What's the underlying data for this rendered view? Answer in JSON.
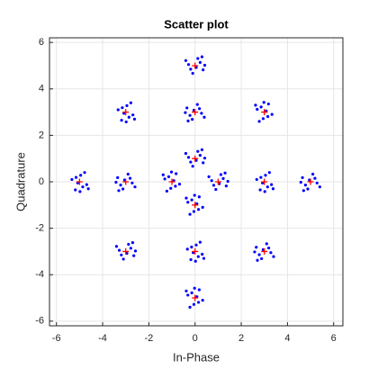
{
  "chart_data": {
    "type": "scatter",
    "title": "Scatter plot",
    "x_label": "In-Phase",
    "y_label": "Quadrature",
    "xlim": [
      -6.3,
      6.4
    ],
    "ylim": [
      -6.2,
      6.2
    ],
    "xticks": [
      -6,
      -4,
      -2,
      0,
      2,
      4,
      6
    ],
    "yticks": [
      -6,
      -4,
      -2,
      0,
      2,
      4,
      6
    ],
    "grid": true,
    "series": [
      {
        "color": "#0000ff",
        "marker": "o",
        "x": [
          0.12,
          -0.28,
          0.35,
          -0.1,
          0.22,
          -0.4,
          0.05,
          0.3,
          -0.19,
          0.42,
          -2.69,
          -2.95,
          -3.18,
          -3.33,
          -2.86,
          -2.78,
          -3.08,
          -2.62,
          -3.15,
          -2.98,
          -0.12,
          0.28,
          -0.35,
          0.1,
          -0.22,
          0.4,
          -0.05,
          -0.3,
          0.19,
          -0.42,
          2.69,
          2.95,
          3.18,
          3.33,
          2.86,
          2.78,
          3.08,
          2.62,
          3.15,
          2.98,
          0.12,
          -0.28,
          0.35,
          -0.1,
          0.22,
          -0.4,
          0.05,
          0.3,
          -0.19,
          0.42,
          -4.69,
          -4.95,
          -5.18,
          -5.33,
          -4.86,
          -4.78,
          -5.08,
          -4.62,
          -5.15,
          -4.98,
          -3.12,
          -2.72,
          -3.35,
          -2.9,
          -3.22,
          -2.6,
          -3.05,
          -3.3,
          -2.81,
          -3.42,
          -1.31,
          -1.05,
          -0.82,
          -0.67,
          -1.14,
          -1.22,
          -0.92,
          -1.38,
          -0.85,
          -1.02,
          1.12,
          0.72,
          1.35,
          0.9,
          1.22,
          0.6,
          1.05,
          1.3,
          0.81,
          1.42,
          3.31,
          3.05,
          2.82,
          2.67,
          3.14,
          3.22,
          2.92,
          3.38,
          2.85,
          3.02,
          4.88,
          5.28,
          4.65,
          5.1,
          4.78,
          5.4,
          4.95,
          4.7,
          5.19,
          4.58,
          -0.31,
          -0.05,
          0.18,
          0.33,
          -0.14,
          -0.22,
          0.08,
          -0.38,
          0.15,
          -0.02,
          -2.88,
          -3.28,
          -2.65,
          -3.1,
          -2.78,
          -3.4,
          -2.95,
          -2.7,
          -3.19,
          -2.58,
          0.31,
          0.05,
          -0.18,
          -0.33,
          0.14,
          0.22,
          -0.08,
          0.38,
          -0.15,
          0.02,
          2.88,
          3.28,
          2.65,
          3.1,
          2.78,
          3.4,
          2.95,
          2.7,
          3.19,
          2.58,
          -0.31,
          -0.05,
          0.18,
          0.33,
          -0.14,
          -0.22,
          0.08,
          -0.38,
          0.15,
          -0.02
        ],
        "values": [
          5.31,
          5.05,
          4.82,
          4.67,
          5.14,
          5.22,
          4.92,
          5.38,
          4.85,
          5.02,
          2.88,
          3.28,
          2.65,
          3.1,
          2.78,
          3.4,
          2.95,
          2.7,
          3.19,
          2.58,
          2.69,
          2.95,
          3.18,
          3.33,
          2.86,
          2.78,
          3.08,
          2.62,
          3.15,
          2.98,
          3.12,
          2.72,
          3.35,
          2.9,
          3.22,
          2.6,
          3.05,
          3.3,
          2.81,
          3.42,
          1.31,
          1.05,
          0.82,
          0.67,
          1.14,
          1.22,
          0.92,
          1.38,
          0.85,
          1.02,
          -0.12,
          0.28,
          -0.35,
          0.1,
          -0.22,
          0.4,
          -0.05,
          -0.3,
          0.19,
          -0.42,
          -0.31,
          -0.05,
          0.18,
          0.33,
          -0.14,
          -0.22,
          0.08,
          -0.38,
          0.15,
          -0.02,
          0.12,
          -0.28,
          0.35,
          -0.1,
          0.22,
          -0.4,
          0.05,
          0.3,
          -0.19,
          0.42,
          0.31,
          0.05,
          -0.18,
          -0.33,
          0.14,
          0.22,
          -0.08,
          0.38,
          -0.15,
          0.02,
          -0.12,
          0.28,
          -0.35,
          0.1,
          -0.22,
          0.4,
          -0.05,
          -0.3,
          0.19,
          -0.42,
          -0.31,
          -0.05,
          0.18,
          0.33,
          -0.14,
          -0.22,
          0.08,
          -0.38,
          0.15,
          -0.02,
          -0.88,
          -1.28,
          -0.65,
          -1.1,
          -0.78,
          -1.4,
          -0.95,
          -0.7,
          -1.19,
          -0.58,
          -2.69,
          -2.95,
          -3.18,
          -3.33,
          -2.86,
          -2.78,
          -3.08,
          -2.62,
          -3.15,
          -2.98,
          -3.12,
          -2.72,
          -3.35,
          -2.9,
          -3.22,
          -2.6,
          -3.05,
          -3.3,
          -2.81,
          -3.42,
          -3.31,
          -3.05,
          -2.82,
          -2.67,
          -3.14,
          -3.22,
          -2.92,
          -3.38,
          -2.85,
          -3.02,
          -4.88,
          -5.28,
          -4.65,
          -5.1,
          -4.78,
          -5.4,
          -4.95,
          -4.7,
          -5.19,
          -4.58
        ]
      },
      {
        "color": "#ff0000",
        "marker": "+",
        "x": [
          0,
          -3,
          0,
          3,
          0,
          -5,
          -3,
          -1,
          1,
          3,
          5,
          0,
          -3,
          0,
          3,
          0
        ],
        "values": [
          5,
          3,
          3,
          3,
          1,
          0,
          0,
          0,
          0,
          0,
          0,
          -1,
          -3,
          -3,
          -3,
          -5
        ]
      }
    ]
  }
}
